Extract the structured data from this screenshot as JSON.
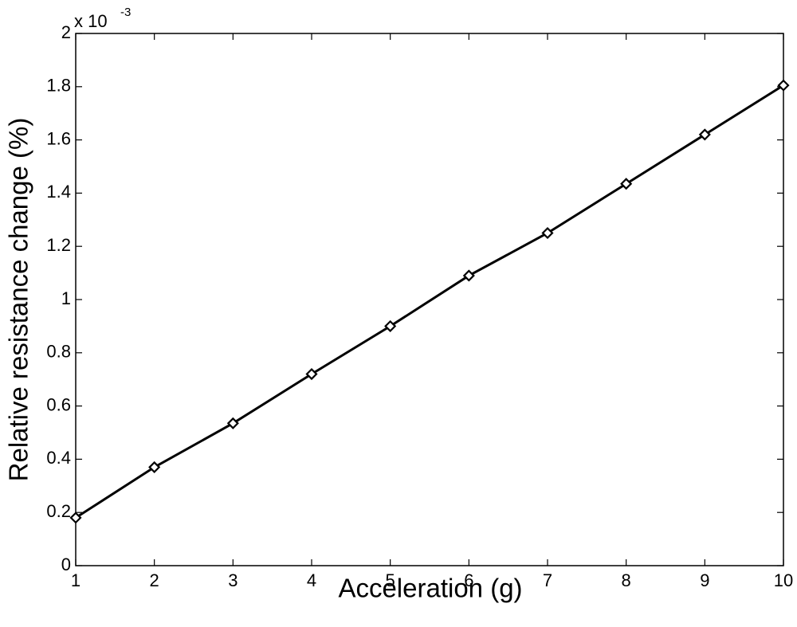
{
  "chart_data": {
    "type": "line",
    "xlabel": "Acceleration (g)",
    "ylabel": "Relative resistance change (%)",
    "y_multiplier": "x 10",
    "y_exponent": "-3",
    "x": [
      1,
      2,
      3,
      4,
      5,
      6,
      7,
      8,
      9,
      10
    ],
    "values": [
      0.18,
      0.37,
      0.535,
      0.72,
      0.9,
      1.09,
      1.25,
      1.435,
      1.62,
      1.805
    ],
    "color": "#000000",
    "marker": "diamond",
    "xlim": [
      1,
      10
    ],
    "xticks": [
      1,
      2,
      3,
      4,
      5,
      6,
      7,
      8,
      9,
      10
    ],
    "ylim": [
      0,
      2
    ],
    "yticks": [
      0,
      0.2,
      0.4,
      0.6,
      0.8,
      1,
      1.2,
      1.4,
      1.6,
      1.8,
      2
    ],
    "grid": false
  }
}
